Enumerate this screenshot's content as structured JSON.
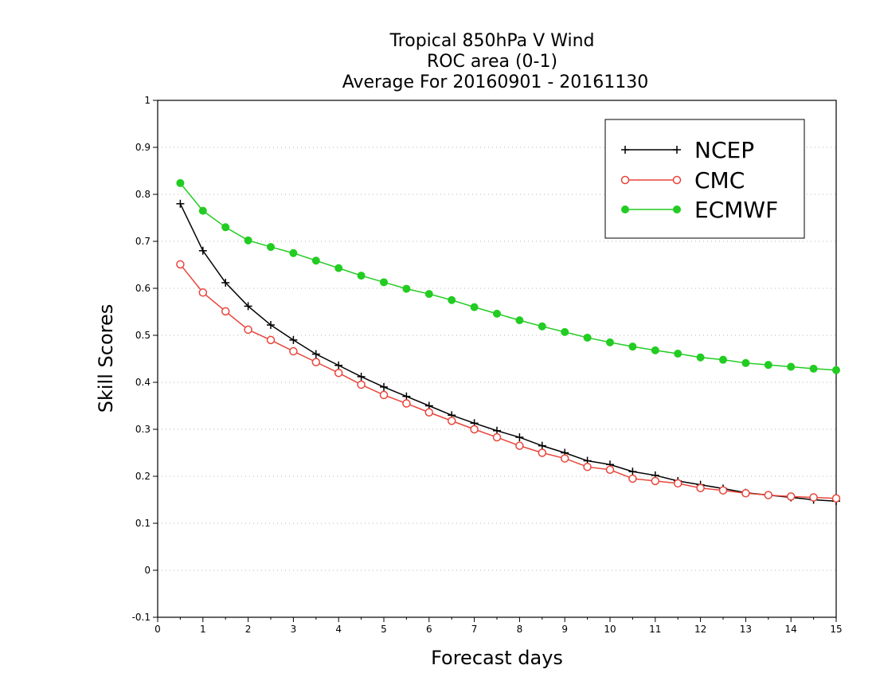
{
  "chart_data": {
    "type": "line",
    "title": "Tropical 850hPa V Wind",
    "subtitle": [
      "ROC area (0-1)",
      "Average For 20160901 - 20161130"
    ],
    "xlabel": "Forecast days",
    "ylabel": "Skill Scores",
    "xlim": [
      0,
      15
    ],
    "ylim": [
      -0.1,
      1
    ],
    "x_ticks": [
      "0",
      "1",
      "2",
      "3",
      "4",
      "5",
      "6",
      "7",
      "8",
      "9",
      "10",
      "11",
      "12",
      "13",
      "14",
      "15"
    ],
    "y_ticks": [
      "-0.1",
      "0",
      "0.1",
      "0.2",
      "0.3",
      "0.4",
      "0.5",
      "0.6",
      "0.7",
      "0.8",
      "0.9",
      "1"
    ],
    "grid": true,
    "legend_position": "top-right",
    "x": [
      0.5,
      1,
      1.5,
      2,
      2.5,
      3,
      3.5,
      4,
      4.5,
      5,
      5.5,
      6,
      6.5,
      7,
      7.5,
      8,
      8.5,
      9,
      9.5,
      10,
      10.5,
      11,
      11.5,
      12,
      12.5,
      13,
      13.5,
      14,
      14.5,
      15
    ],
    "series": [
      {
        "name": "NCEP",
        "color": "#000000",
        "marker": "plus",
        "values": [
          0.78,
          0.68,
          0.612,
          0.562,
          0.522,
          0.49,
          0.46,
          0.436,
          0.412,
          0.39,
          0.37,
          0.35,
          0.33,
          0.313,
          0.297,
          0.283,
          0.265,
          0.25,
          0.233,
          0.225,
          0.21,
          0.202,
          0.19,
          0.182,
          0.174,
          0.165,
          0.16,
          0.155,
          0.15,
          0.147
        ]
      },
      {
        "name": "CMC",
        "color": "#e8453c",
        "marker": "open-circle",
        "values": [
          0.651,
          0.591,
          0.551,
          0.512,
          0.49,
          0.466,
          0.443,
          0.42,
          0.395,
          0.373,
          0.355,
          0.336,
          0.318,
          0.3,
          0.283,
          0.265,
          0.25,
          0.238,
          0.22,
          0.214,
          0.195,
          0.19,
          0.185,
          0.175,
          0.17,
          0.164,
          0.16,
          0.157,
          0.155,
          0.153
        ]
      },
      {
        "name": "ECMWF",
        "color": "#22cc22",
        "marker": "filled-circle",
        "values": [
          0.824,
          0.765,
          0.73,
          0.702,
          0.688,
          0.675,
          0.659,
          0.643,
          0.627,
          0.613,
          0.599,
          0.588,
          0.575,
          0.56,
          0.546,
          0.532,
          0.519,
          0.507,
          0.495,
          0.485,
          0.476,
          0.468,
          0.461,
          0.453,
          0.448,
          0.441,
          0.437,
          0.433,
          0.429,
          0.426
        ]
      }
    ]
  }
}
